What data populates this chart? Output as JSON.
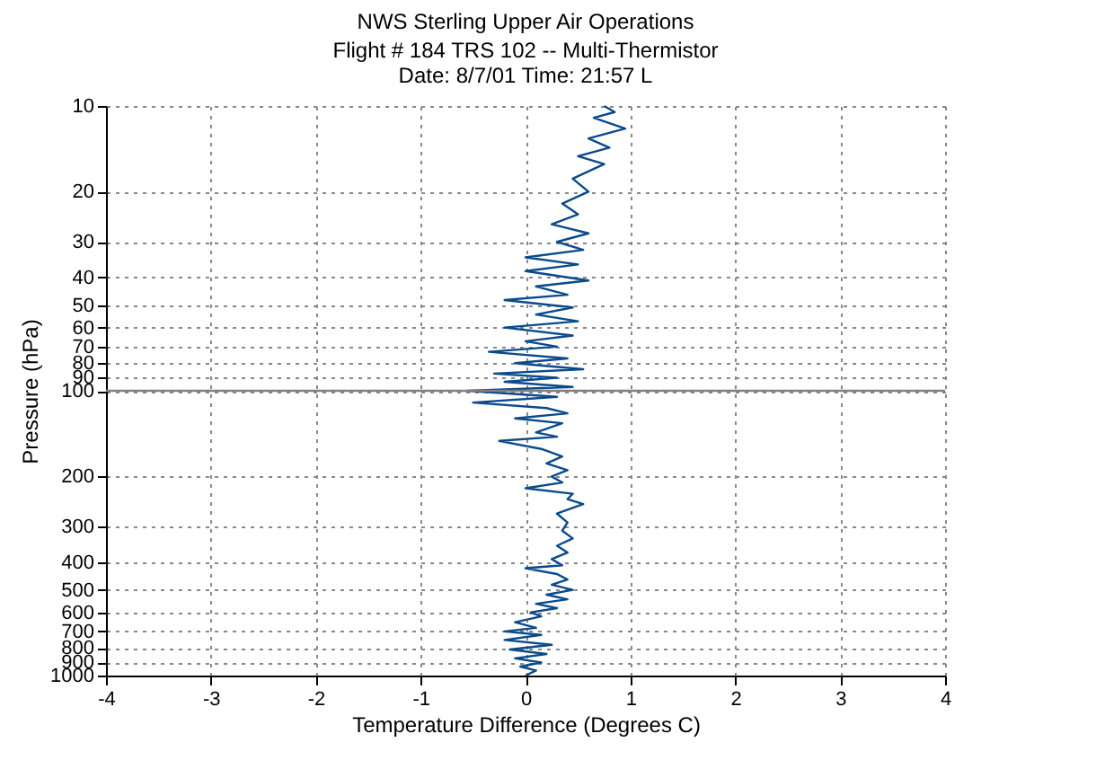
{
  "chart_data": {
    "type": "line",
    "title": "NWS Sterling Upper Air Operations",
    "subtitle": "Flight # 184 TRS 102 -- Multi-Thermistor\nDate: 8/7/01     Time: 21:57 L",
    "xlabel": "Temperature Difference (Degrees C)",
    "ylabel": "Pressure (hPa)",
    "series": [
      {
        "color": "#0b4a8b",
        "x": [
          0.0,
          0.1,
          -0.05,
          0.15,
          -0.1,
          0.2,
          -0.15,
          0.25,
          -0.2,
          0.15,
          -0.2,
          0.1,
          -0.1,
          0.15,
          0.05,
          0.3,
          0.1,
          0.4,
          0.2,
          0.45,
          0.25,
          0.4,
          0.3,
          0.0,
          0.35,
          0.25,
          0.4,
          0.3,
          0.45,
          0.35,
          0.4,
          0.3,
          0.55,
          0.4,
          0.45,
          0.0,
          0.35,
          0.25,
          0.4,
          0.2,
          0.35,
          0.15,
          -0.25,
          0.3,
          0.1,
          0.35,
          -0.1,
          0.4,
          0.2,
          -0.5,
          0.3,
          -0.55,
          0.45,
          -0.2,
          0.3,
          -0.3,
          0.55,
          -0.1,
          0.4,
          -0.35,
          0.3,
          0.0,
          0.45,
          -0.2,
          0.5,
          0.1,
          0.45,
          -0.2,
          0.4,
          0.1,
          0.6,
          0.0,
          0.5,
          0.0,
          0.55,
          0.3,
          0.6,
          0.25,
          0.5,
          0.35,
          0.6,
          0.45,
          0.75,
          0.5,
          0.8,
          0.6,
          0.95,
          0.65,
          0.85,
          0.75
        ],
        "values": [
          1000,
          960,
          930,
          900,
          870,
          840,
          810,
          780,
          750,
          720,
          700,
          680,
          650,
          620,
          600,
          580,
          560,
          540,
          520,
          500,
          480,
          460,
          440,
          420,
          410,
          390,
          370,
          350,
          330,
          310,
          290,
          270,
          250,
          240,
          230,
          220,
          210,
          200,
          190,
          180,
          170,
          160,
          150,
          145,
          140,
          130,
          125,
          120,
          115,
          110,
          105,
          100,
          97,
          93,
          90,
          87,
          84,
          80,
          77,
          73,
          70,
          67,
          64,
          60,
          57,
          54,
          51,
          48,
          46,
          43,
          41,
          38,
          36,
          34,
          32,
          30,
          28,
          26,
          24,
          22,
          20,
          18,
          16,
          15,
          14,
          13,
          12,
          11,
          10.5,
          10
        ]
      }
    ],
    "xlim": [
      -4,
      4
    ],
    "xticks": [
      -4,
      -3,
      -2,
      -1,
      0,
      1,
      2,
      3,
      4
    ],
    "ylim": [
      1000,
      10
    ],
    "yticks": [
      10,
      20,
      30,
      40,
      50,
      60,
      70,
      80,
      90,
      100,
      200,
      300,
      400,
      500,
      600,
      700,
      800,
      900,
      1000
    ],
    "log": "y",
    "grid": true,
    "marker": "none",
    "line_style": "solid",
    "ref_lines": [
      {
        "axis": "y",
        "value": 100,
        "color": "#808080"
      }
    ]
  }
}
